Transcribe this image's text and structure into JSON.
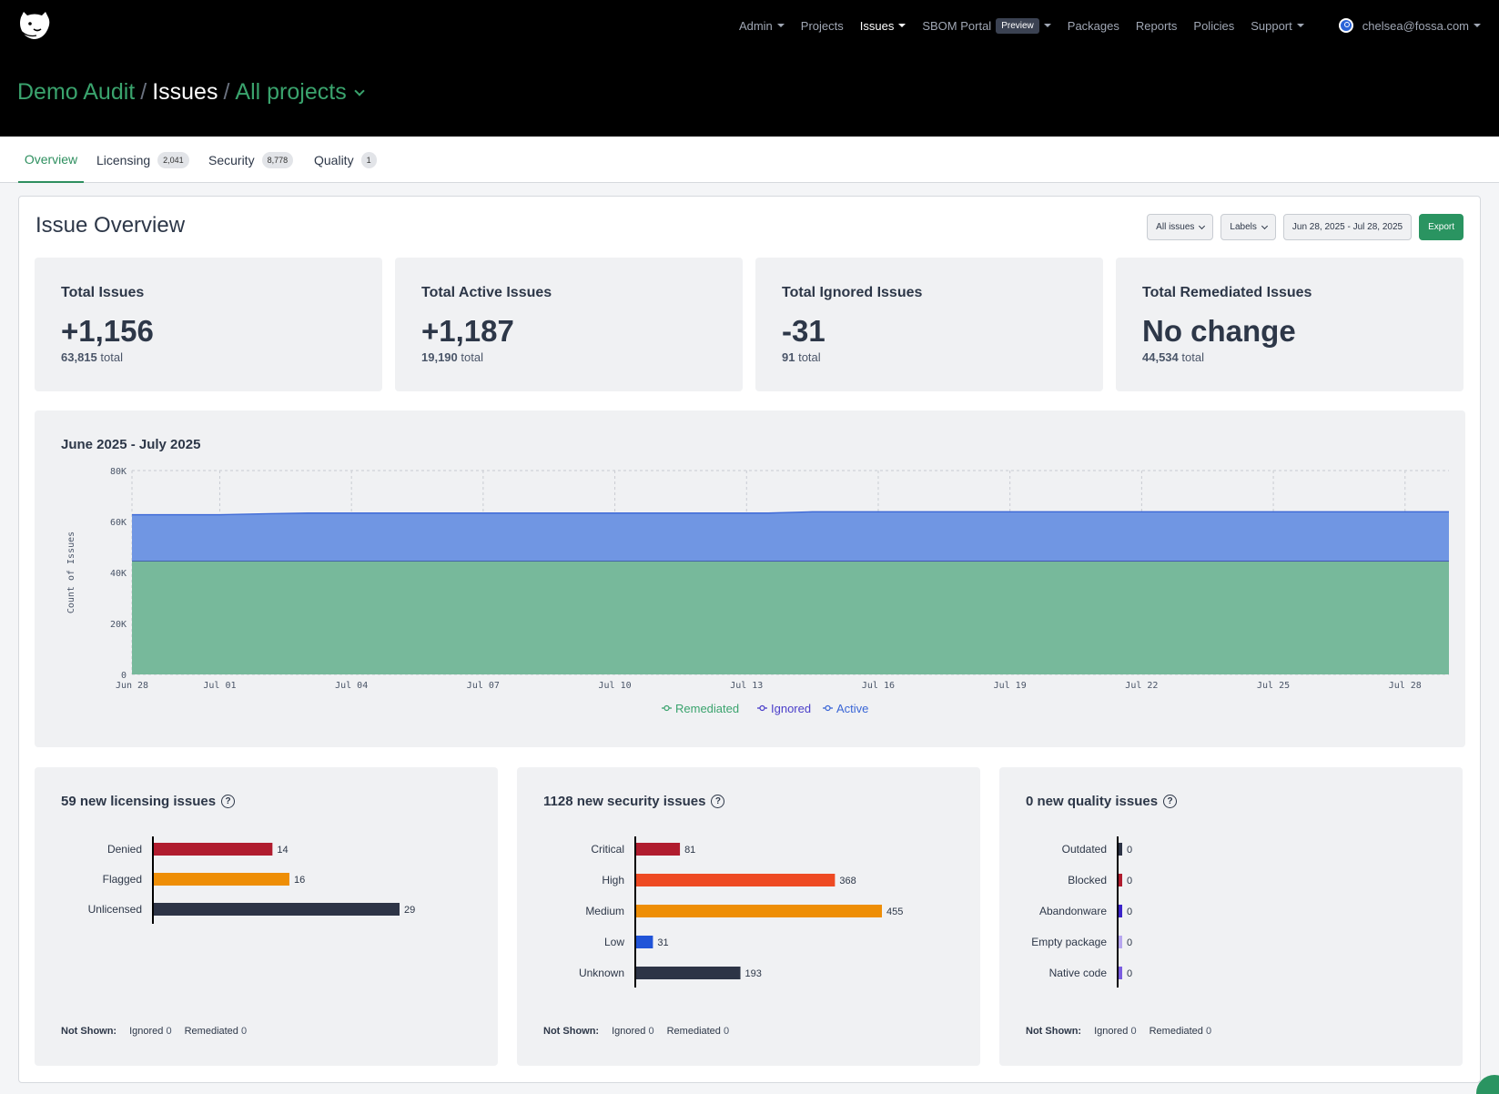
{
  "nav": {
    "items": [
      {
        "label": "Admin",
        "caret": true
      },
      {
        "label": "Projects",
        "caret": false
      },
      {
        "label": "Issues",
        "caret": true,
        "active": true
      },
      {
        "label": "SBOM Portal",
        "badge": "Preview",
        "caret": true
      },
      {
        "label": "Packages",
        "caret": false
      },
      {
        "label": "Reports",
        "caret": false
      },
      {
        "label": "Policies",
        "caret": false
      },
      {
        "label": "Support",
        "caret": true
      }
    ],
    "user": "chelsea@fossa.com"
  },
  "breadcrumb": {
    "org": "Demo Audit",
    "section": "Issues",
    "scope": "All projects"
  },
  "tabs": [
    {
      "label": "Overview",
      "count": ""
    },
    {
      "label": "Licensing",
      "count": "2,041"
    },
    {
      "label": "Security",
      "count": "8,778"
    },
    {
      "label": "Quality",
      "count": "1"
    }
  ],
  "overview": {
    "title": "Issue Overview",
    "filter_issues": "All issues",
    "filter_labels": "Labels",
    "date_range": "Jun 28, 2025 - Jul 28, 2025",
    "export": "Export"
  },
  "stats": [
    {
      "title": "Total Issues",
      "delta": "+1,156",
      "total": "63,815",
      "suffix": "total"
    },
    {
      "title": "Total Active Issues",
      "delta": "+1,187",
      "total": "19,190",
      "suffix": "total"
    },
    {
      "title": "Total Ignored Issues",
      "delta": "-31",
      "total": "91",
      "suffix": "total"
    },
    {
      "title": "Total Remediated Issues",
      "delta": "No change",
      "total": "44,534",
      "suffix": "total"
    }
  ],
  "chart_data": [
    {
      "type": "area",
      "title": "June 2025 - July 2025",
      "ylabel": "Count of Issues",
      "ylim": [
        0,
        80000
      ],
      "yticks": [
        "0",
        "20K",
        "40K",
        "60K",
        "80K"
      ],
      "xticks": [
        "Jun 28",
        "Jul 01",
        "Jul 04",
        "Jul 07",
        "Jul 10",
        "Jul 13",
        "Jul 16",
        "Jul 19",
        "Jul 22",
        "Jul 25",
        "Jul 28"
      ],
      "x_days": [
        0,
        2,
        3,
        4,
        14.5,
        15.5,
        30
      ],
      "series": [
        {
          "name": "Remediated",
          "color": "#77b99b",
          "line": "#3aa36d",
          "values": [
            44534,
            44534,
            44534,
            44534,
            44534,
            44534,
            44534
          ]
        },
        {
          "name": "Ignored",
          "color": "#4a3ec9",
          "line": "#4a3ec9",
          "values": [
            122,
            122,
            110,
            100,
            95,
            91,
            91
          ]
        },
        {
          "name": "Active",
          "color": "#7096e3",
          "line": "#3a66d6",
          "values": [
            18003,
            18003,
            18400,
            18700,
            18700,
            19190,
            19190
          ]
        }
      ],
      "stacked": true,
      "grid": true,
      "legend": "bottom-center"
    },
    {
      "type": "bar",
      "orientation": "horizontal",
      "title": "59 new licensing issues",
      "categories": [
        "Denied",
        "Flagged",
        "Unlicensed"
      ],
      "values": [
        14,
        16,
        29
      ],
      "colors": [
        "#b01c2e",
        "#ee8e06",
        "#2d3446"
      ],
      "xlim": [
        0,
        29
      ]
    },
    {
      "type": "bar",
      "orientation": "horizontal",
      "title": "1128 new security issues",
      "categories": [
        "Critical",
        "High",
        "Medium",
        "Low",
        "Unknown"
      ],
      "values": [
        81,
        368,
        455,
        31,
        193
      ],
      "colors": [
        "#b01c2e",
        "#ee4a23",
        "#ee8e06",
        "#2154d8",
        "#2d3446"
      ],
      "xlim": [
        0,
        455
      ]
    },
    {
      "type": "bar",
      "orientation": "horizontal",
      "title": "0 new quality issues",
      "categories": [
        "Outdated",
        "Blocked",
        "Abandonware",
        "Empty package",
        "Native code"
      ],
      "values": [
        0,
        0,
        0,
        0,
        0
      ],
      "colors": [
        "#2d3446",
        "#b01c2e",
        "#3b23c9",
        "#b7a6ef",
        "#7a5ce0"
      ],
      "xlim": [
        0,
        1
      ]
    }
  ],
  "not_shown": {
    "label": "Not Shown:",
    "ignored_label": "Ignored",
    "remediated_label": "Remediated",
    "licensing": {
      "ignored": "0",
      "remediated": "0"
    },
    "security": {
      "ignored": "0",
      "remediated": "0"
    },
    "quality": {
      "ignored": "0",
      "remediated": "0"
    }
  },
  "icons": {
    "logo": "fossa-bear-logo-icon",
    "user": "power-icon",
    "help": "question-circle-icon"
  },
  "colors": {
    "accent": "#2e8f5f",
    "export": "#2a9461"
  }
}
